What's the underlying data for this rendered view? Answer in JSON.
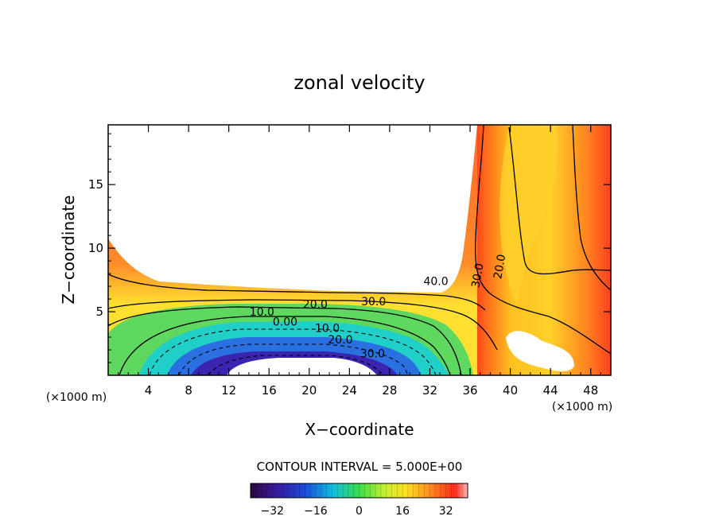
{
  "chart_data": {
    "type": "heatmap",
    "title": "zonal velocity",
    "xlabel": "X−coordinate",
    "ylabel": "Z−coordinate",
    "x_unit": "(×1000 m)",
    "y_unit": "(×1000 m)",
    "xlim": [
      0,
      50
    ],
    "ylim": [
      0,
      19.7
    ],
    "x_ticks": [
      4,
      8,
      12,
      16,
      20,
      24,
      28,
      32,
      36,
      40,
      44,
      48
    ],
    "y_ticks": [
      5,
      10,
      15
    ],
    "contour_interval_text": "CONTOUR INTERVAL = 5.000E+00",
    "contour_labels": [
      {
        "text": "40.0",
        "x": 32.6,
        "y": 7.1
      },
      {
        "text": "30.0",
        "x": 26.4,
        "y": 5.5
      },
      {
        "text": "20.0",
        "x": 20.6,
        "y": 5.3
      },
      {
        "text": "10.0",
        "x": 15.3,
        "y": 4.7
      },
      {
        "text": "0.00",
        "x": 17.6,
        "y": 3.9
      },
      {
        "text": "10.0",
        "x": 21.8,
        "y": 3.4
      },
      {
        "text": "20.0",
        "x": 23.1,
        "y": 2.5
      },
      {
        "text": "30.0",
        "x": 26.3,
        "y": 1.4
      },
      {
        "text": "30.0",
        "x": 37.1,
        "y": 7.8
      },
      {
        "text": "20.0",
        "x": 39.3,
        "y": 8.5
      }
    ],
    "colorbar": {
      "ticks": [
        "−32",
        "−16",
        "0",
        "16",
        "32"
      ],
      "tick_values": [
        -32,
        -16,
        0,
        16,
        32
      ],
      "range": [
        -40,
        40
      ]
    },
    "colors": {
      "low": "#2a0a5e",
      "mid": "#5bd35b",
      "high": "#ff3a1e",
      "top": "#ffb3b3"
    }
  }
}
